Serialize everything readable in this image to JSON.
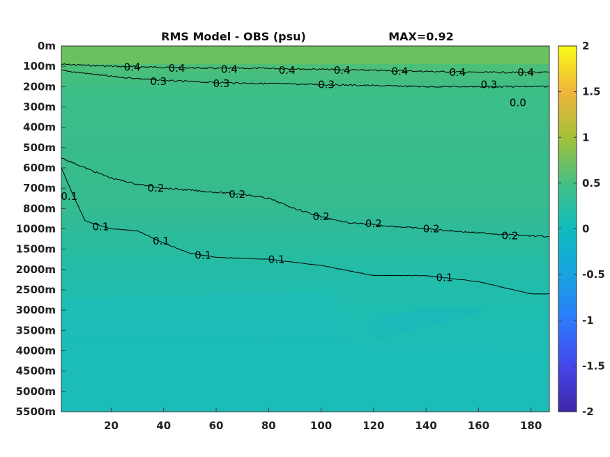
{
  "chart_data": {
    "type": "heatmap",
    "title": "RMS Model - OBS (psu)",
    "annotation": "MAX=0.92",
    "xlabel": "",
    "ylabel": "",
    "xlim": [
      1,
      187
    ],
    "x_ticks": [
      20,
      40,
      60,
      80,
      100,
      120,
      140,
      160,
      180
    ],
    "y_ticks": [
      "0m",
      "100m",
      "200m",
      "300m",
      "400m",
      "500m",
      "600m",
      "700m",
      "800m",
      "1000m",
      "1500m",
      "2000m",
      "2500m",
      "3000m",
      "3500m",
      "4000m",
      "4500m",
      "5000m",
      "5500m"
    ],
    "colorbar": {
      "range": [
        -2,
        2
      ],
      "ticks": [
        "2",
        "1.5",
        "1",
        "0.5",
        "0",
        "-0.5",
        "-1",
        "-1.5",
        "-2"
      ],
      "colormap": "parula"
    },
    "contours": [
      {
        "level": 0.4,
        "label": "0.4",
        "x": [
          1,
          20,
          40,
          60,
          80,
          100,
          120,
          140,
          160,
          187
        ],
        "depth_level": [
          0.9,
          1.0,
          1.05,
          1.1,
          1.1,
          1.15,
          1.2,
          1.25,
          1.3,
          1.3
        ]
      },
      {
        "level": 0.3,
        "label": "0.3",
        "x": [
          1,
          20,
          40,
          60,
          80,
          100,
          120,
          140,
          160,
          187
        ],
        "depth_level": [
          1.2,
          1.5,
          1.7,
          1.8,
          1.85,
          1.9,
          1.95,
          2.0,
          2.0,
          2.0
        ]
      },
      {
        "level": 0.2,
        "label": "0.2",
        "x": [
          1,
          10,
          20,
          30,
          40,
          50,
          60,
          70,
          80,
          90,
          100,
          110,
          120,
          140,
          160,
          187
        ],
        "depth_level": [
          5.5,
          6.0,
          6.5,
          6.8,
          7.0,
          7.1,
          7.2,
          7.3,
          7.5,
          8.0,
          8.4,
          8.7,
          8.8,
          9.0,
          9.2,
          9.4
        ]
      },
      {
        "level": 0.1,
        "label": "0.1",
        "x": [
          1,
          5,
          10,
          20,
          30,
          40,
          50,
          60,
          80,
          100,
          120,
          140,
          160,
          180,
          187
        ],
        "depth_level": [
          6.0,
          7.2,
          8.6,
          9.0,
          9.1,
          9.7,
          10.2,
          10.4,
          10.5,
          10.8,
          11.3,
          11.3,
          11.6,
          12.2,
          12.2
        ]
      }
    ],
    "contour_labels": [
      {
        "text": "0.4",
        "x": 28,
        "depth_level": 1.05
      },
      {
        "text": "0.4",
        "x": 45,
        "depth_level": 1.1
      },
      {
        "text": "0.4",
        "x": 65,
        "depth_level": 1.15
      },
      {
        "text": "0.4",
        "x": 87,
        "depth_level": 1.2
      },
      {
        "text": "0.4",
        "x": 108,
        "depth_level": 1.2
      },
      {
        "text": "0.4",
        "x": 130,
        "depth_level": 1.25
      },
      {
        "text": "0.4",
        "x": 152,
        "depth_level": 1.3
      },
      {
        "text": "0.4",
        "x": 178,
        "depth_level": 1.3
      },
      {
        "text": "0.3",
        "x": 38,
        "depth_level": 1.75
      },
      {
        "text": "0.3",
        "x": 62,
        "depth_level": 1.85
      },
      {
        "text": "0.3",
        "x": 102,
        "depth_level": 1.9
      },
      {
        "text": "0.3",
        "x": 164,
        "depth_level": 1.9
      },
      {
        "text": "0.2",
        "x": 37,
        "depth_level": 7.0
      },
      {
        "text": "0.2",
        "x": 68,
        "depth_level": 7.3
      },
      {
        "text": "0.2",
        "x": 100,
        "depth_level": 8.4
      },
      {
        "text": "0.2",
        "x": 120,
        "depth_level": 8.75
      },
      {
        "text": "0.2",
        "x": 142,
        "depth_level": 9.0
      },
      {
        "text": "0.2",
        "x": 172,
        "depth_level": 9.35
      },
      {
        "text": "0.1",
        "x": 16,
        "depth_level": 8.9
      },
      {
        "text": "0.1",
        "x": 39,
        "depth_level": 9.6
      },
      {
        "text": "0.1",
        "x": 55,
        "depth_level": 10.3
      },
      {
        "text": "0.1",
        "x": 83,
        "depth_level": 10.5
      },
      {
        "text": "0.1",
        "x": 147,
        "depth_level": 11.4
      },
      {
        "text": "0.1",
        "x": 4,
        "depth_level": 7.4
      },
      {
        "text": "0.0",
        "x": 175,
        "depth_level": 2.8
      }
    ]
  }
}
